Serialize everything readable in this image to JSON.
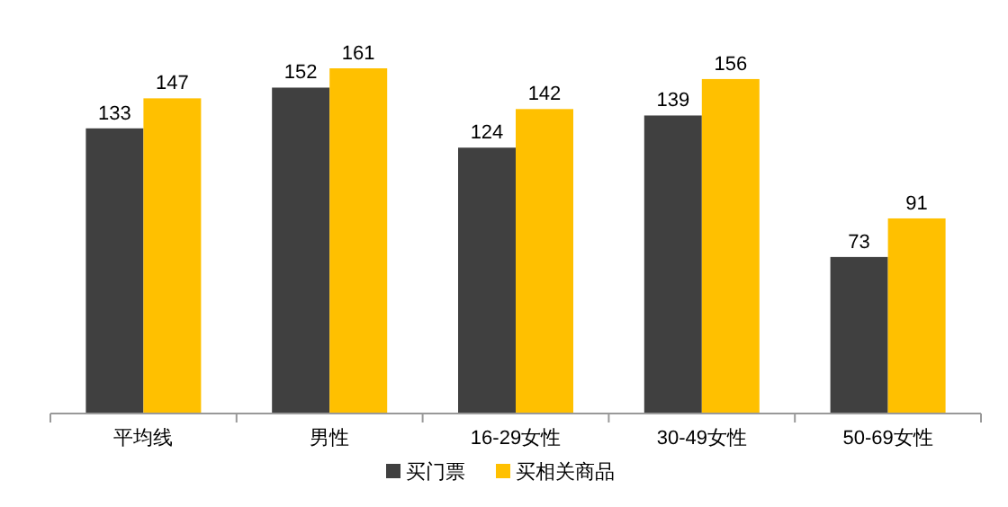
{
  "chart_data": {
    "type": "bar",
    "categories": [
      "平均线",
      "男性",
      "16-29女性",
      "30-49女性",
      "50-69女性"
    ],
    "series": [
      {
        "name": "买门票",
        "color": "#404040",
        "values": [
          133,
          152,
          124,
          139,
          73
        ]
      },
      {
        "name": "买相关商品",
        "color": "#ffc000",
        "values": [
          147,
          161,
          142,
          156,
          91
        ]
      }
    ],
    "data_labels": true,
    "legend": "bottom"
  }
}
